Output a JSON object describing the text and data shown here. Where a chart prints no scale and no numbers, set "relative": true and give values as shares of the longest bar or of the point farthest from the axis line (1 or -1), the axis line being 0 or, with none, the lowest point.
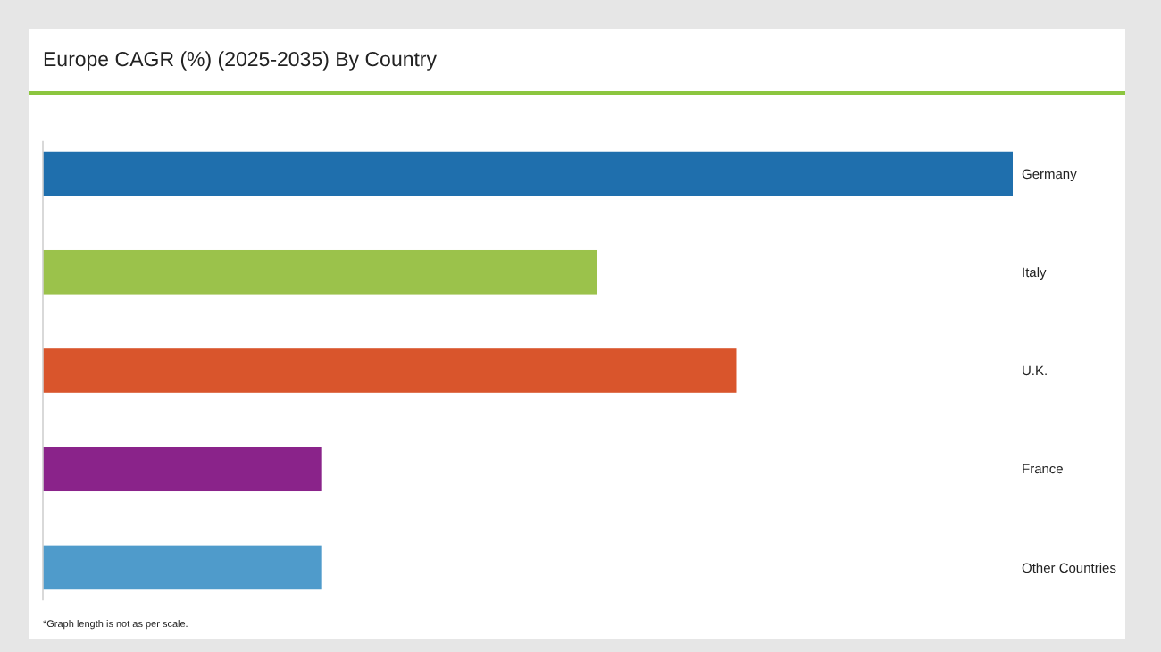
{
  "chart_data": {
    "type": "bar",
    "orientation": "horizontal",
    "relative": true,
    "title": "Europe CAGR (%) (2025-2035) By Country",
    "categories": [
      "Germany",
      "Italy",
      "U.K.",
      "France",
      "Other Countries"
    ],
    "values": [
      1,
      0.571,
      0.715,
      0.287,
      0.287
    ],
    "colors": [
      "#1f6fad",
      "#9bc24b",
      "#d9552c",
      "#8a238a",
      "#4f9bcb"
    ],
    "annotations": [
      "*Graph length is not as per scale."
    ],
    "grid": false
  }
}
